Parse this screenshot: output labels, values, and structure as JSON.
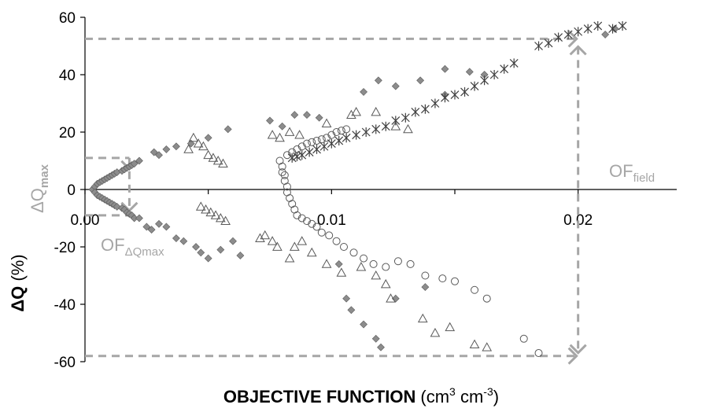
{
  "chart_data": {
    "type": "scatter",
    "title": "",
    "xlabel_bold": "OBJECTIVE FUNCTION",
    "xlabel_unit_prefix": "(cm",
    "xlabel_unit_sup1": "3",
    "xlabel_unit_mid": " cm",
    "xlabel_unit_sup2": "-3",
    "xlabel_unit_suffix": ")",
    "ylabel_bold": "ΔQ",
    "ylabel_unit": " (%)",
    "xlim": [
      0,
      0.024
    ],
    "ylim": [
      -60,
      60
    ],
    "y_ticks": [
      60,
      40,
      20,
      0,
      -20,
      -40,
      -60
    ],
    "y_tick_labels": [
      "60",
      "40",
      "20",
      "0",
      "-20",
      "-40",
      "-60"
    ],
    "x_tick_labels": [
      "0.00",
      "0.01",
      "0.02"
    ],
    "x_ticks": [
      0,
      0.01,
      0.02
    ],
    "grid": false,
    "colors": {
      "diamond": "#8c8c8c",
      "triangle": "#595959",
      "circle": "#595959",
      "star": "#404040",
      "annotation": "#a6a6a6"
    },
    "series": [
      {
        "marker": "diamond",
        "points": [
          [
            0.0003,
            0
          ],
          [
            0.0004,
            1
          ],
          [
            0.0004,
            -1
          ],
          [
            0.0005,
            2
          ],
          [
            0.0005,
            -2
          ],
          [
            0.0006,
            2.5
          ],
          [
            0.0006,
            -2.5
          ],
          [
            0.0007,
            3
          ],
          [
            0.0007,
            -3
          ],
          [
            0.0008,
            3.5
          ],
          [
            0.0008,
            -3.5
          ],
          [
            0.0009,
            4
          ],
          [
            0.0009,
            -4
          ],
          [
            0.001,
            4.5
          ],
          [
            0.001,
            -4.5
          ],
          [
            0.0011,
            5
          ],
          [
            0.0011,
            -5
          ],
          [
            0.0012,
            5.5
          ],
          [
            0.0012,
            -5.5
          ],
          [
            0.0013,
            6
          ],
          [
            0.0013,
            -6
          ],
          [
            0.0015,
            6.5
          ],
          [
            0.0015,
            -6.5
          ],
          [
            0.0016,
            7
          ],
          [
            0.0016,
            -7
          ],
          [
            0.0017,
            7.5
          ],
          [
            0.0017,
            -8
          ],
          [
            0.0018,
            8
          ],
          [
            0.0018,
            -8.5
          ],
          [
            0.0019,
            8.5
          ],
          [
            0.0019,
            -9
          ],
          [
            0.002,
            9
          ],
          [
            0.002,
            -10
          ],
          [
            0.0022,
            10
          ],
          [
            0.0022,
            -10
          ],
          [
            0.0025,
            -13
          ],
          [
            0.0027,
            -14
          ],
          [
            0.0028,
            13
          ],
          [
            0.003,
            12
          ],
          [
            0.003,
            -12
          ],
          [
            0.0033,
            14
          ],
          [
            0.0033,
            -13
          ],
          [
            0.0037,
            15
          ],
          [
            0.0037,
            -17
          ],
          [
            0.004,
            -18
          ],
          [
            0.0043,
            16
          ],
          [
            0.0045,
            -20
          ],
          [
            0.0047,
            -22
          ],
          [
            0.005,
            18
          ],
          [
            0.005,
            -24
          ],
          [
            0.0055,
            -21
          ],
          [
            0.0058,
            21
          ],
          [
            0.006,
            -18
          ],
          [
            0.0063,
            -23
          ],
          [
            0.0075,
            24
          ],
          [
            0.008,
            22
          ],
          [
            0.0085,
            26
          ],
          [
            0.009,
            26
          ],
          [
            0.0095,
            25
          ],
          [
            0.0103,
            -26
          ],
          [
            0.0106,
            -38
          ],
          [
            0.0108,
            -42
          ],
          [
            0.0113,
            -47
          ],
          [
            0.0118,
            -52
          ],
          [
            0.012,
            -55
          ],
          [
            0.0126,
            -38
          ],
          [
            0.0138,
            -34
          ],
          [
            0.0146,
            33
          ],
          [
            0.0113,
            34
          ],
          [
            0.0119,
            38
          ],
          [
            0.0126,
            36
          ],
          [
            0.0136,
            38
          ],
          [
            0.0146,
            42
          ],
          [
            0.0156,
            41
          ],
          [
            0.0162,
            40
          ],
          [
            0.0211,
            54
          ],
          [
            0.0215,
            56
          ]
        ]
      },
      {
        "marker": "triangle",
        "points": [
          [
            0.0042,
            14
          ],
          [
            0.0044,
            18
          ],
          [
            0.0046,
            16
          ],
          [
            0.0048,
            15
          ],
          [
            0.005,
            12
          ],
          [
            0.0052,
            11
          ],
          [
            0.0054,
            10
          ],
          [
            0.0056,
            9
          ],
          [
            0.0047,
            -6
          ],
          [
            0.0049,
            -7
          ],
          [
            0.0051,
            -8
          ],
          [
            0.0053,
            -9
          ],
          [
            0.0055,
            -10
          ],
          [
            0.0057,
            -11
          ],
          [
            0.0071,
            -17
          ],
          [
            0.0073,
            -16
          ],
          [
            0.0076,
            -18
          ],
          [
            0.0078,
            -20
          ],
          [
            0.0083,
            -24
          ],
          [
            0.0085,
            -20
          ],
          [
            0.0088,
            -18
          ],
          [
            0.0092,
            -22
          ],
          [
            0.0098,
            -26
          ],
          [
            0.0104,
            -29
          ],
          [
            0.0112,
            -27
          ],
          [
            0.0118,
            -30
          ],
          [
            0.0122,
            -33
          ],
          [
            0.0124,
            -38
          ],
          [
            0.0076,
            19
          ],
          [
            0.0079,
            18
          ],
          [
            0.0083,
            20
          ],
          [
            0.0087,
            19
          ],
          [
            0.0098,
            23
          ],
          [
            0.0108,
            26
          ],
          [
            0.011,
            27
          ],
          [
            0.0118,
            27
          ],
          [
            0.0126,
            22
          ],
          [
            0.0131,
            21
          ],
          [
            0.0137,
            -45
          ],
          [
            0.0142,
            -50
          ],
          [
            0.0148,
            -48
          ],
          [
            0.0158,
            -54
          ],
          [
            0.0163,
            -55
          ]
        ]
      },
      {
        "marker": "circle",
        "points": [
          [
            0.0079,
            10
          ],
          [
            0.008,
            8
          ],
          [
            0.008,
            6
          ],
          [
            0.0081,
            5
          ],
          [
            0.0081,
            3
          ],
          [
            0.0082,
            1
          ],
          [
            0.0082,
            -1
          ],
          [
            0.0083,
            -3
          ],
          [
            0.0084,
            -5
          ],
          [
            0.0085,
            -7
          ],
          [
            0.0086,
            -9
          ],
          [
            0.0088,
            -10
          ],
          [
            0.009,
            -11
          ],
          [
            0.0092,
            -12
          ],
          [
            0.0094,
            -13
          ],
          [
            0.0096,
            -15
          ],
          [
            0.0099,
            -16
          ],
          [
            0.0102,
            -18
          ],
          [
            0.0105,
            -20
          ],
          [
            0.0109,
            -22
          ],
          [
            0.0113,
            -24
          ],
          [
            0.0117,
            -26
          ],
          [
            0.0122,
            -27
          ],
          [
            0.0127,
            -25
          ],
          [
            0.0132,
            -26
          ],
          [
            0.0138,
            -30
          ],
          [
            0.0145,
            -31
          ],
          [
            0.015,
            -32
          ],
          [
            0.0158,
            -35
          ],
          [
            0.0163,
            -38
          ],
          [
            0.0178,
            -52
          ],
          [
            0.0184,
            -57
          ],
          [
            0.0082,
            12
          ],
          [
            0.0084,
            13
          ],
          [
            0.0086,
            14
          ],
          [
            0.0088,
            15
          ],
          [
            0.009,
            16
          ],
          [
            0.0092,
            16.5
          ],
          [
            0.0094,
            17
          ],
          [
            0.0096,
            17.5
          ],
          [
            0.0098,
            18
          ],
          [
            0.01,
            19
          ],
          [
            0.0102,
            20
          ],
          [
            0.0104,
            20.5
          ],
          [
            0.0106,
            21
          ]
        ]
      },
      {
        "marker": "star",
        "points": [
          [
            0.0084,
            11
          ],
          [
            0.0086,
            11.5
          ],
          [
            0.0088,
            12
          ],
          [
            0.0091,
            13
          ],
          [
            0.0094,
            14
          ],
          [
            0.0097,
            15
          ],
          [
            0.01,
            16
          ],
          [
            0.0103,
            17
          ],
          [
            0.0106,
            18
          ],
          [
            0.011,
            19
          ],
          [
            0.0114,
            20
          ],
          [
            0.0118,
            21
          ],
          [
            0.0122,
            22
          ],
          [
            0.0126,
            24
          ],
          [
            0.013,
            25
          ],
          [
            0.0134,
            27
          ],
          [
            0.0138,
            28
          ],
          [
            0.0142,
            30
          ],
          [
            0.0146,
            32
          ],
          [
            0.015,
            33
          ],
          [
            0.0154,
            34
          ],
          [
            0.0158,
            36
          ],
          [
            0.0162,
            38
          ],
          [
            0.0166,
            40
          ],
          [
            0.017,
            42
          ],
          [
            0.0174,
            44
          ],
          [
            0.0184,
            50
          ],
          [
            0.0188,
            51
          ],
          [
            0.0192,
            53
          ],
          [
            0.0196,
            54
          ],
          [
            0.02,
            55
          ],
          [
            0.0204,
            56
          ],
          [
            0.0208,
            57
          ],
          [
            0.0214,
            56
          ],
          [
            0.0218,
            57
          ]
        ]
      }
    ],
    "annotations": {
      "of_field_prefix": "OF",
      "of_field_sub": "field",
      "of_dq_prefix": "OF",
      "of_dq_sub": "ΔQmax",
      "dq_max_prefix": "ΔQ",
      "dq_max_sub": "max",
      "guides": {
        "dq_max_upper": 11,
        "dq_max_lower": -9,
        "of_dq_max": 0.0018,
        "of_field": 0.02,
        "dq_field_upper": 52.5,
        "dq_field_lower": -58
      }
    }
  }
}
